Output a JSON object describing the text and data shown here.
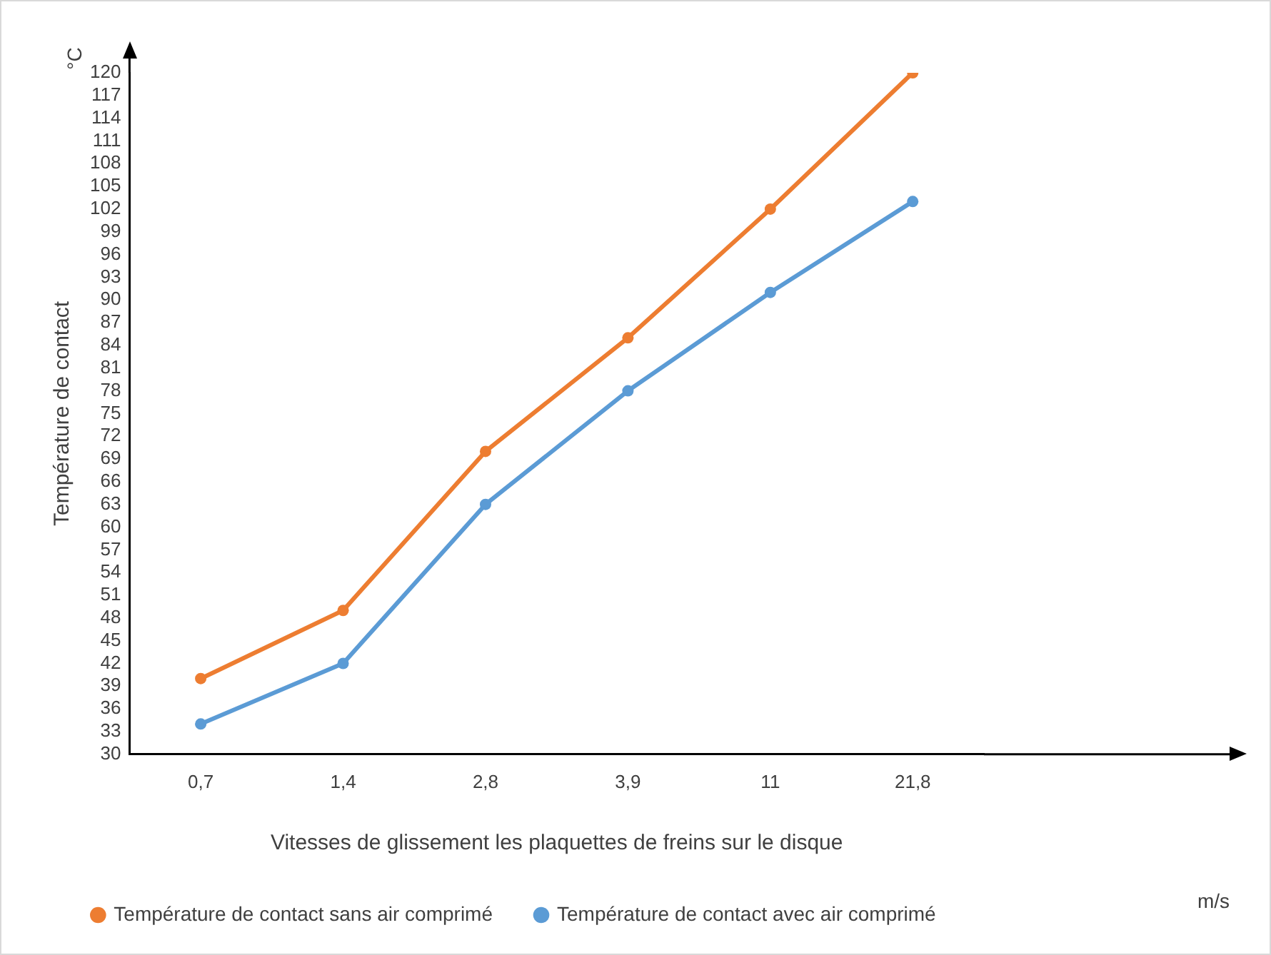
{
  "chart_data": {
    "type": "line",
    "xlabel": "Vitesses de glissement les plaquettes de freins sur le disque",
    "ylabel": "Température de contact",
    "annotations": [
      "°C",
      "m/s"
    ],
    "categories": [
      "0,7",
      "1,4",
      "2,8",
      "3,9",
      "11",
      "21,8"
    ],
    "series": [
      {
        "name": "Température de contact sans air comprimé",
        "color": "#ed7d31",
        "values": [
          40,
          49,
          70,
          85,
          102,
          120
        ]
      },
      {
        "name": "Température de contact avec air comprimé",
        "color": "#5b9bd5",
        "values": [
          34,
          42,
          63,
          78,
          91,
          103
        ]
      }
    ],
    "ylim": [
      30,
      120
    ],
    "yticks": [
      30,
      33,
      36,
      39,
      42,
      45,
      48,
      51,
      54,
      57,
      60,
      63,
      66,
      69,
      72,
      75,
      78,
      81,
      84,
      87,
      90,
      93,
      96,
      99,
      102,
      105,
      108,
      111,
      114,
      117,
      120
    ],
    "grid": false,
    "legend": "bottom",
    "marker": "circle",
    "line_style": "solid"
  }
}
